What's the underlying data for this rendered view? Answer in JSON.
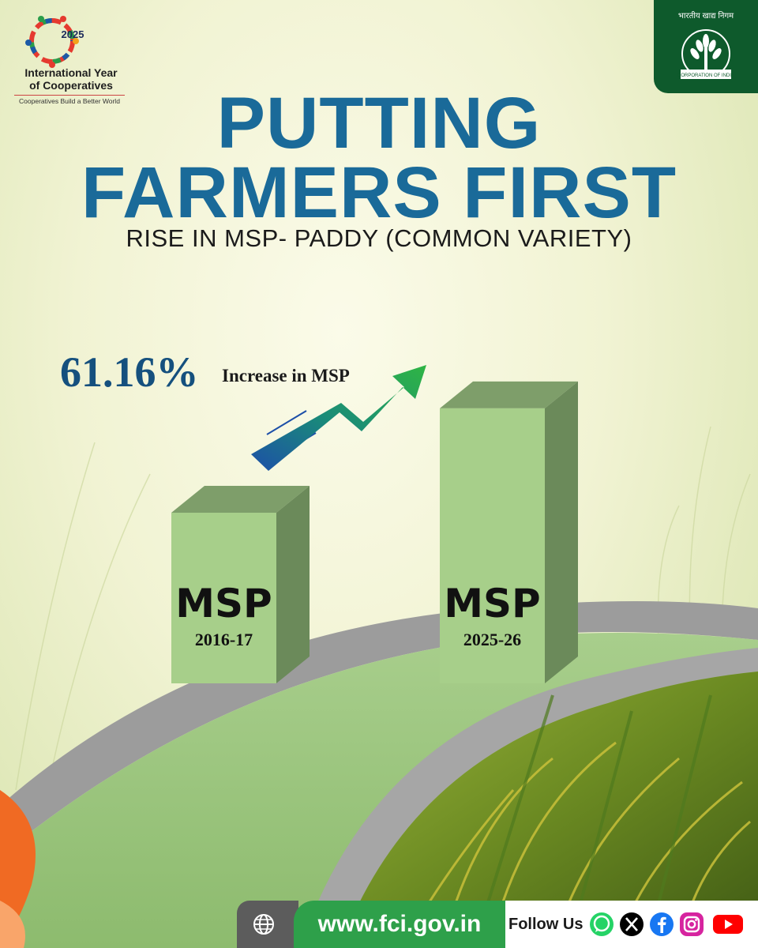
{
  "logo": {
    "year": "2025",
    "title_line1": "International Year",
    "title_line2": "of Cooperatives",
    "tagline": "Cooperatives Build a Better World"
  },
  "emblem": {
    "hindi_text": "भारतीय खाद्य निगम",
    "ribbon_text": "CORPORATION OF INDIA"
  },
  "headline": {
    "line1": "PUTTING",
    "line2": "FARMERS FIRST",
    "subtitle": "RISE IN  MSP- PADDY (COMMON VARIETY)"
  },
  "increase": {
    "percent": "61.16%",
    "label": "Increase in MSP"
  },
  "chart_data": {
    "type": "bar",
    "categories": [
      "2016-17",
      "2025-26"
    ],
    "bar_labels": [
      "MSP",
      "MSP"
    ],
    "values": [
      100,
      161.16
    ],
    "annotation": "61.16% Increase in MSP"
  },
  "footer": {
    "url": "www.fci.gov.in",
    "follow_label": "Follow Us",
    "social_icons": [
      "whatsapp-icon",
      "x-icon",
      "facebook-icon",
      "instagram-icon",
      "youtube-icon"
    ]
  },
  "colors": {
    "headline": "#1a6a99",
    "bar_front": "#a7cf8a",
    "bar_side": "#6b8a5a",
    "bar_top": "#7e9e6a",
    "footer_green": "#2ea04a",
    "emblem_green": "#0e5a2c"
  }
}
